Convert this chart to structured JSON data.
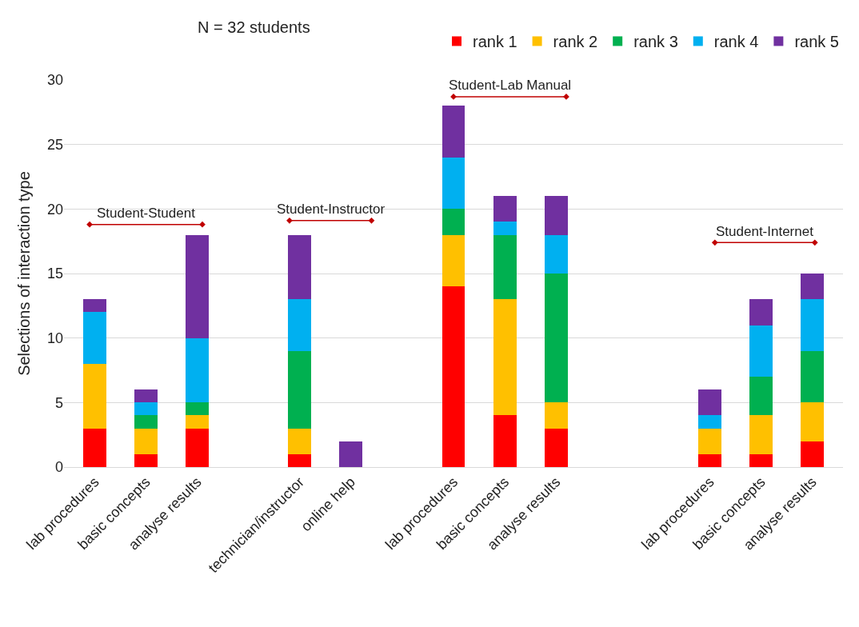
{
  "chart_data": {
    "type": "bar",
    "stacked": true,
    "title": "N = 32 students",
    "ylabel": "Selections of interaction type",
    "categories": [
      "lab procedures",
      "basic concepts",
      "analyse results",
      null,
      "technician/instructor",
      "online help",
      null,
      "lab procedures",
      "basic concepts",
      "analyse results",
      null,
      null,
      "lab procedures",
      "basic concepts",
      "analyse results"
    ],
    "series": [
      {
        "name": "rank 1",
        "color": "#ff0000",
        "values": [
          3,
          1,
          3,
          null,
          1,
          0,
          null,
          14,
          4,
          3,
          null,
          null,
          1,
          1,
          2
        ]
      },
      {
        "name": "rank 2",
        "color": "#ffc000",
        "values": [
          5,
          2,
          1,
          null,
          2,
          0,
          null,
          4,
          9,
          2,
          null,
          null,
          2,
          3,
          3
        ]
      },
      {
        "name": "rank 3",
        "color": "#00b050",
        "values": [
          0,
          1,
          1,
          null,
          6,
          0,
          null,
          2,
          5,
          10,
          null,
          null,
          0,
          3,
          4
        ]
      },
      {
        "name": "rank 4",
        "color": "#00b0f0",
        "values": [
          4,
          1,
          5,
          null,
          4,
          0,
          null,
          4,
          1,
          3,
          null,
          null,
          1,
          4,
          4
        ]
      },
      {
        "name": "rank 5",
        "color": "#7030a0",
        "values": [
          1,
          1,
          8,
          null,
          5,
          2,
          null,
          4,
          2,
          3,
          null,
          null,
          2,
          2,
          2
        ]
      }
    ],
    "ylim": [
      0,
      30
    ],
    "yticks": [
      0,
      5,
      10,
      15,
      20,
      25,
      30
    ],
    "grid": "y",
    "legend": "top right",
    "annotations": [
      "Student-Student",
      "Student-Instructor",
      "Student-Lab Manual",
      "Student-Internet"
    ]
  }
}
